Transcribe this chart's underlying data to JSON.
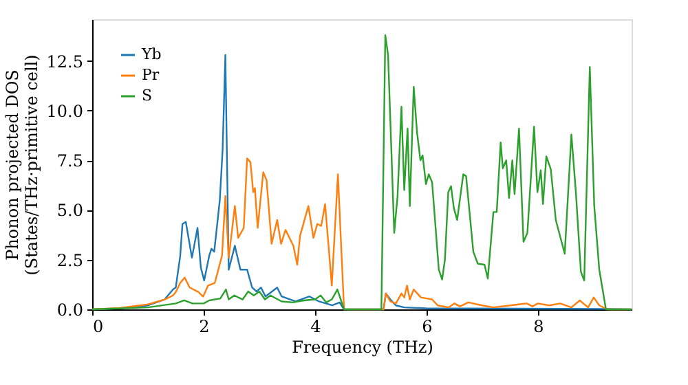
{
  "chart_data": {
    "type": "line",
    "xlabel": "Frequency (THz)",
    "ylabel": "Phonon projected DOS\n(States/THz·primitive cell)",
    "xlim": [
      0,
      9.68
    ],
    "ylim": [
      0,
      14.6
    ],
    "xticks": [
      0,
      2,
      4,
      6,
      8
    ],
    "yticks": [
      {
        "value": 0,
        "label": "0.0"
      },
      {
        "value": 2.5,
        "label": "2.5"
      },
      {
        "value": 5,
        "label": "5.0"
      },
      {
        "value": 7.5,
        "label": "7.5"
      },
      {
        "value": 10,
        "label": "10.0"
      },
      {
        "value": 12.5,
        "label": "12.5"
      }
    ],
    "grid": false,
    "legend": "top left",
    "line_style": "solid",
    "marker": "none",
    "series": [
      {
        "name": "Yb",
        "color": "#1f77b4",
        "x": [
          0,
          0.5,
          1,
          1.3,
          1.45,
          1.5,
          1.58,
          1.62,
          1.68,
          1.79,
          1.89,
          1.95,
          2.01,
          2.1,
          2.14,
          2.19,
          2.29,
          2.34,
          2.39,
          2.45,
          2.56,
          2.66,
          2.78,
          2.87,
          2.95,
          3.03,
          3.11,
          3.32,
          3.4,
          3.65,
          3.9,
          4.07,
          4.31,
          4.44,
          4.52,
          5.23,
          5.27,
          5.35,
          5.45,
          5.6,
          6,
          9.2,
          9.68
        ],
        "values": [
          0,
          0.05,
          0.2,
          0.5,
          1.0,
          1.1,
          2.7,
          4.3,
          4.4,
          2.6,
          4.1,
          2.1,
          1.45,
          2.7,
          3.05,
          2.9,
          5.5,
          8.0,
          12.8,
          2.0,
          3.2,
          2.0,
          2.0,
          1.1,
          0.9,
          1.1,
          0.65,
          1.1,
          0.65,
          0.4,
          0.65,
          0.4,
          0.2,
          0.35,
          0,
          0,
          0.8,
          0.5,
          0.2,
          0.1,
          0.05,
          0.02,
          0
        ]
      },
      {
        "name": "Pr",
        "color": "#ff7f0e",
        "x": [
          0,
          0.5,
          1,
          1.3,
          1.45,
          1.5,
          1.58,
          1.66,
          1.75,
          1.91,
          1.99,
          2.08,
          2.2,
          2.33,
          2.39,
          2.45,
          2.56,
          2.62,
          2.72,
          2.78,
          2.84,
          2.89,
          2.92,
          2.97,
          3.07,
          3.13,
          3.22,
          3.32,
          3.39,
          3.47,
          3.61,
          3.68,
          3.73,
          3.88,
          3.97,
          4.04,
          4.11,
          4.18,
          4.3,
          4.41,
          4.52,
          5.23,
          5.27,
          5.35,
          5.45,
          5.55,
          5.6,
          5.65,
          5.7,
          5.77,
          5.9,
          6.1,
          6.2,
          6.4,
          6.5,
          6.6,
          6.75,
          7,
          7.2,
          7.5,
          7.8,
          7.9,
          8.0,
          8.2,
          8.4,
          8.6,
          8.75,
          8.9,
          9.0,
          9.1,
          9.25,
          9.68
        ],
        "values": [
          0,
          0.07,
          0.25,
          0.5,
          0.7,
          0.87,
          1.33,
          1.6,
          1.1,
          0.87,
          0.64,
          1.2,
          1.33,
          2.7,
          5.7,
          2.6,
          5.2,
          3.6,
          4.1,
          7.6,
          7.4,
          5.9,
          6.1,
          4.1,
          6.9,
          6.5,
          3.3,
          4.5,
          3.3,
          4.0,
          3.2,
          2.25,
          3.7,
          5.2,
          3.6,
          4.3,
          4.2,
          5.3,
          1.2,
          6.8,
          0,
          0,
          0.8,
          0.4,
          0.3,
          0.8,
          0.6,
          1.2,
          0.5,
          1.0,
          0.6,
          0.5,
          0.2,
          0.1,
          0.3,
          0.15,
          0.35,
          0.2,
          0.1,
          0.2,
          0.3,
          0.15,
          0.3,
          0.2,
          0.3,
          0.1,
          0.45,
          0.1,
          0.6,
          0.2,
          0,
          0
        ]
      },
      {
        "name": "S",
        "color": "#2ca02c",
        "x": [
          0,
          1,
          1.5,
          1.65,
          1.8,
          2,
          2.1,
          2.3,
          2.4,
          2.45,
          2.55,
          2.7,
          2.8,
          2.9,
          3.0,
          3.1,
          3.2,
          3.4,
          3.6,
          3.8,
          4.0,
          4.1,
          4.2,
          4.3,
          4.4,
          4.52,
          5.19,
          5.26,
          5.31,
          5.42,
          5.48,
          5.55,
          5.6,
          5.66,
          5.7,
          5.77,
          5.83,
          5.89,
          5.93,
          5.99,
          6.04,
          6.1,
          6.22,
          6.28,
          6.33,
          6.39,
          6.44,
          6.49,
          6.55,
          6.66,
          6.71,
          6.84,
          6.92,
          7.04,
          7.1,
          7.2,
          7.26,
          7.33,
          7.37,
          7.43,
          7.48,
          7.54,
          7.58,
          7.66,
          7.74,
          7.81,
          7.93,
          7.99,
          8.05,
          8.09,
          8.15,
          8.23,
          8.32,
          8.48,
          8.6,
          8.68,
          8.77,
          8.83,
          8.93,
          9.01,
          9.1,
          9.22,
          9.68
        ],
        "values": [
          0,
          0.1,
          0.3,
          0.45,
          0.3,
          0.3,
          0.45,
          0.55,
          1.0,
          0.5,
          0.7,
          0.5,
          0.9,
          0.7,
          0.9,
          0.5,
          0.7,
          0.4,
          0.35,
          0.45,
          0.5,
          0.7,
          0.35,
          0.5,
          1.0,
          0,
          0,
          13.8,
          12.8,
          3.85,
          5.7,
          10.2,
          6.0,
          9.1,
          5.2,
          11.2,
          8.9,
          7.5,
          7.75,
          6.3,
          6.8,
          6.4,
          2.0,
          1.5,
          2.5,
          5.9,
          6.2,
          5.1,
          4.5,
          6.8,
          6.7,
          2.9,
          2.3,
          2.25,
          1.55,
          4.9,
          4.9,
          8.4,
          7.1,
          7.5,
          5.6,
          7.5,
          5.8,
          9.1,
          3.4,
          3.85,
          9.2,
          5.9,
          7.0,
          5.3,
          7.7,
          7.05,
          4.5,
          2.8,
          8.8,
          5.9,
          1.9,
          1.45,
          12.2,
          5.2,
          2.0,
          0,
          0
        ]
      }
    ]
  }
}
